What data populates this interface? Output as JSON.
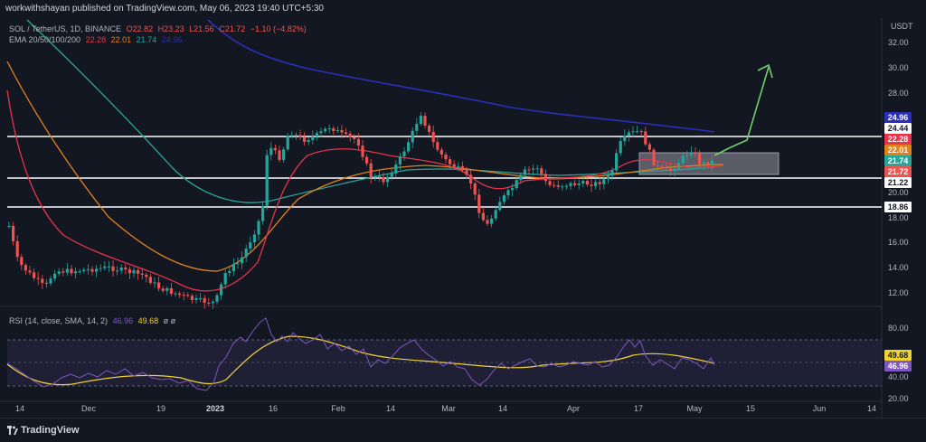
{
  "header": {
    "publish_note": "workwithshayan published on TradingView.com, May 06, 2023 19:40 UTC+5:30"
  },
  "symbol_legend": {
    "symbol": "SOL / TetherUS, 1D, BINANCE",
    "open": "O22.82",
    "high": "H23.23",
    "low": "L21.56",
    "close": "C21.72",
    "change": "−1.10 (−4.82%)"
  },
  "ema_legend": {
    "label": "EMA 20/50/100/200",
    "values": [
      "22.28",
      "22.01",
      "21.74",
      "24.96"
    ],
    "colors": [
      "#e8334a",
      "#e0821c",
      "#26a69a",
      "#2a2fb8"
    ]
  },
  "rsi_legend": {
    "label": "RSI (14, close, SMA, 14, 2)",
    "rsi_value": "46.96",
    "sma_value": "49.68",
    "extra": "ø ø"
  },
  "price_axis": {
    "currency": "USDT",
    "ticks": [
      "32.00",
      "30.00",
      "28.00",
      "24.44",
      "21.22",
      "20.00",
      "18.86",
      "18.00",
      "16.00",
      "14.00",
      "12.00"
    ]
  },
  "price_badges": [
    {
      "value": "24.96",
      "bg": "#2a2fb8",
      "fg": "#ffffff"
    },
    {
      "value": "24.44",
      "bg": "#ffffff",
      "fg": "#131722"
    },
    {
      "value": "22.28",
      "bg": "#e8334a",
      "fg": "#ffffff"
    },
    {
      "value": "22.01",
      "bg": "#e0821c",
      "fg": "#ffffff"
    },
    {
      "value": "21.74",
      "bg": "#26a69a",
      "fg": "#ffffff"
    },
    {
      "value": "21.72",
      "bg": "#ef5350",
      "fg": "#ffffff"
    },
    {
      "value": "21.22",
      "bg": "#ffffff",
      "fg": "#131722"
    },
    {
      "value": "18.86",
      "bg": "#ffffff",
      "fg": "#131722"
    }
  ],
  "rsi_axis": {
    "ticks": [
      "80.00",
      "40.00",
      "20.00"
    ],
    "badges": [
      {
        "value": "49.68",
        "bg": "#f0d232",
        "fg": "#131722"
      },
      {
        "value": "46.96",
        "bg": "#7e57c2",
        "fg": "#ffffff"
      }
    ]
  },
  "time_axis": {
    "labels": [
      "14",
      "Dec",
      "19",
      "2023",
      "16",
      "Feb",
      "14",
      "Mar",
      "14",
      "Apr",
      "17",
      "May",
      "15",
      "Jun",
      "14"
    ]
  },
  "footer": {
    "brand": "TradingView"
  },
  "colors": {
    "background": "#131722",
    "up": "#26a69a",
    "down": "#ef5350",
    "forecast_arrow": "#6fcf6a",
    "rsi": "#7e57c2",
    "rsi_sma": "#f0d232"
  }
}
